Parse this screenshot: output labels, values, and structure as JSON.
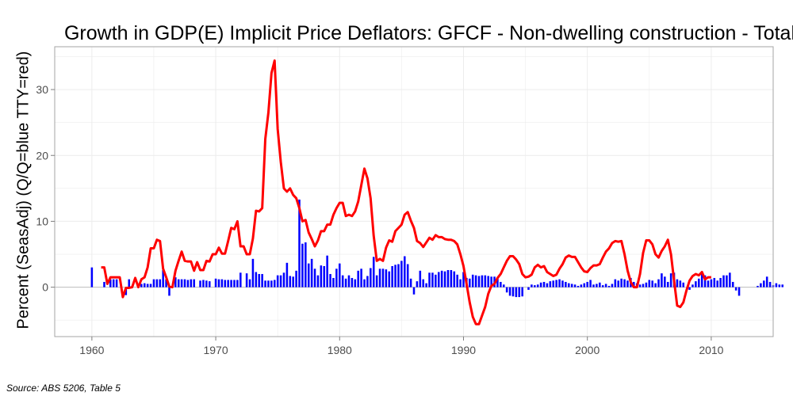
{
  "chart_data": {
    "type": "bar+line",
    "title": "Growth in GDP(E) Implicit Price Deflators: GFCF - Non-dwelling construction - Total",
    "ylabel": "Percent (SeasAdj) (Q/Q=blue TTY=red)",
    "xlabel": "",
    "xlim": [
      1957,
      2015
    ],
    "ylim": [
      -7.5,
      36.5
    ],
    "x_ticks": [
      1960,
      1970,
      1980,
      1990,
      2000,
      2010
    ],
    "y_ticks": [
      0,
      10,
      20,
      30
    ],
    "grid": true,
    "colors": {
      "qq": "#0000ff",
      "tty": "#ff0000",
      "zero_line": "#bdbdbd",
      "grid": "#ececec",
      "frame": "#a6a6a6"
    },
    "series": [
      {
        "name": "Q/Q",
        "style": "bar",
        "color": "#0000ff",
        "start": 1960.0,
        "step": 0.25,
        "values": [
          3.0,
          0,
          0,
          0,
          0.8,
          0,
          1.2,
          1.2,
          1.2,
          0,
          0,
          -1.2,
          1.2,
          0,
          0,
          0,
          0.5,
          0.6,
          0.5,
          0.5,
          1.2,
          1.2,
          1.2,
          2.6,
          1.2,
          -1.3,
          0,
          1.5,
          1.2,
          1.2,
          1.2,
          1.1,
          1.2,
          1.2,
          0,
          1.0,
          1.1,
          1.0,
          0.9,
          0,
          1.3,
          1.2,
          1.2,
          1.1,
          1.1,
          1.1,
          1.1,
          1.1,
          2.2,
          0,
          2.1,
          1.2,
          4.3,
          2.3,
          2.0,
          2.0,
          1.0,
          1.0,
          1.0,
          1.1,
          1.8,
          1.8,
          2.2,
          3.7,
          1.7,
          1.6,
          2.5,
          13.3,
          6.6,
          6.8,
          3.6,
          4.3,
          2.8,
          1.8,
          3.3,
          3.2,
          4.8,
          2.0,
          1.4,
          2.8,
          3.6,
          1.8,
          1.3,
          1.8,
          1.4,
          1.2,
          2.5,
          2.8,
          1.2,
          1.7,
          2.9,
          4.6,
          1.8,
          2.8,
          2.8,
          2.7,
          2.4,
          3.2,
          3.4,
          3.5,
          4.0,
          4.7,
          3.5,
          1.3,
          -1.1,
          0.9,
          2.5,
          1.2,
          0.6,
          2.2,
          2.2,
          1.9,
          2.3,
          2.5,
          2.4,
          2.6,
          2.6,
          2.4,
          1.9,
          1.2,
          2.3,
          1.4,
          1.3,
          1.9,
          1.8,
          1.7,
          1.8,
          1.8,
          1.7,
          1.6,
          1.6,
          1.3,
          0.8,
          0.4,
          -0.8,
          -1.3,
          -1.4,
          -1.5,
          -1.5,
          -1.4,
          0,
          -0.4,
          0.4,
          0.3,
          0.4,
          0.7,
          0.8,
          0.6,
          0.9,
          1.0,
          1.1,
          1.2,
          1.0,
          0.8,
          0.6,
          0.5,
          0.4,
          0.2,
          0.4,
          0.6,
          0.8,
          1.1,
          0.4,
          0.5,
          0.7,
          0.3,
          0.5,
          0.2,
          0.5,
          1.2,
          1.0,
          1.3,
          1.2,
          1.0,
          1.4,
          0.8,
          0.6,
          0.4,
          0.5,
          0.7,
          1.1,
          1.0,
          0.6,
          1.2,
          2.1,
          1.6,
          0.8,
          2.1,
          2.2,
          1.2,
          1.0,
          0.7,
          0,
          -0.4,
          0.4,
          0.9,
          1.3,
          2.4,
          1.8,
          1.0,
          1.2,
          1.4,
          1.0,
          1.4,
          1.8,
          1.8,
          2.2,
          0.8,
          -0.5,
          -1.3,
          0,
          0,
          0,
          0,
          0,
          0.2,
          0.6,
          1.0,
          1.6,
          0.8,
          0.3,
          0.6,
          0.4,
          0.4
        ]
      },
      {
        "name": "TTY",
        "style": "line",
        "color": "#ff0000",
        "points": [
          [
            1960.75,
            3.0
          ],
          [
            1961.0,
            3.0
          ],
          [
            1961.25,
            0.5
          ],
          [
            1961.5,
            1.5
          ],
          [
            1961.75,
            1.5
          ],
          [
            1962.0,
            1.5
          ],
          [
            1962.25,
            1.5
          ],
          [
            1962.5,
            -1.5
          ],
          [
            1962.75,
            -0.1
          ],
          [
            1963.0,
            -0.1
          ],
          [
            1963.25,
            0.0
          ],
          [
            1963.5,
            1.4
          ],
          [
            1963.75,
            0.0
          ],
          [
            1964.0,
            1.2
          ],
          [
            1964.25,
            1.5
          ],
          [
            1964.5,
            3.0
          ],
          [
            1964.75,
            5.9
          ],
          [
            1965.0,
            5.9
          ],
          [
            1965.25,
            7.2
          ],
          [
            1965.5,
            7.0
          ],
          [
            1965.75,
            2.8
          ],
          [
            1966.0,
            1.5
          ],
          [
            1966.25,
            0.1
          ],
          [
            1966.5,
            0.0
          ],
          [
            1966.75,
            2.5
          ],
          [
            1967.0,
            4.0
          ],
          [
            1967.25,
            5.4
          ],
          [
            1967.5,
            4.0
          ],
          [
            1967.75,
            3.9
          ],
          [
            1968.0,
            3.9
          ],
          [
            1968.25,
            2.5
          ],
          [
            1968.5,
            3.8
          ],
          [
            1968.75,
            2.6
          ],
          [
            1969.0,
            2.6
          ],
          [
            1969.25,
            4.0
          ],
          [
            1969.5,
            3.9
          ],
          [
            1969.75,
            5.0
          ],
          [
            1970.0,
            5.0
          ],
          [
            1970.25,
            6.0
          ],
          [
            1970.5,
            5.1
          ],
          [
            1970.75,
            5.1
          ],
          [
            1971.0,
            7.0
          ],
          [
            1971.25,
            9.0
          ],
          [
            1971.5,
            8.8
          ],
          [
            1971.75,
            10.0
          ],
          [
            1972.0,
            6.2
          ],
          [
            1972.25,
            6.2
          ],
          [
            1972.5,
            5.0
          ],
          [
            1972.75,
            5.0
          ],
          [
            1973.0,
            7.4
          ],
          [
            1973.25,
            11.6
          ],
          [
            1973.5,
            11.5
          ],
          [
            1973.75,
            12.0
          ],
          [
            1974.0,
            22.5
          ],
          [
            1974.25,
            26.5
          ],
          [
            1974.5,
            32.5
          ],
          [
            1974.75,
            34.4
          ],
          [
            1975.0,
            24.0
          ],
          [
            1975.25,
            19.0
          ],
          [
            1975.5,
            15.0
          ],
          [
            1975.75,
            14.5
          ],
          [
            1976.0,
            15.0
          ],
          [
            1976.25,
            14.0
          ],
          [
            1976.5,
            13.5
          ],
          [
            1976.75,
            12.0
          ],
          [
            1977.0,
            10.0
          ],
          [
            1977.25,
            10.2
          ],
          [
            1977.5,
            8.3
          ],
          [
            1977.75,
            7.3
          ],
          [
            1978.0,
            6.2
          ],
          [
            1978.25,
            7.1
          ],
          [
            1978.5,
            8.5
          ],
          [
            1978.75,
            8.5
          ],
          [
            1979.0,
            9.5
          ],
          [
            1979.25,
            9.5
          ],
          [
            1979.5,
            11.0
          ],
          [
            1979.75,
            12.0
          ],
          [
            1980.0,
            12.8
          ],
          [
            1980.25,
            12.8
          ],
          [
            1980.5,
            10.8
          ],
          [
            1980.75,
            11.0
          ],
          [
            1981.0,
            10.8
          ],
          [
            1981.25,
            11.5
          ],
          [
            1981.5,
            13.0
          ],
          [
            1981.75,
            15.5
          ],
          [
            1982.0,
            18.0
          ],
          [
            1982.25,
            16.5
          ],
          [
            1982.5,
            13.5
          ],
          [
            1982.75,
            7.8
          ],
          [
            1983.0,
            4.0
          ],
          [
            1983.25,
            4.3
          ],
          [
            1983.5,
            4.0
          ],
          [
            1983.75,
            6.0
          ],
          [
            1984.0,
            7.1
          ],
          [
            1984.25,
            6.9
          ],
          [
            1984.5,
            8.5
          ],
          [
            1984.75,
            9.0
          ],
          [
            1985.0,
            9.5
          ],
          [
            1985.25,
            11.0
          ],
          [
            1985.5,
            11.4
          ],
          [
            1985.75,
            10.1
          ],
          [
            1986.0,
            9.0
          ],
          [
            1986.25,
            7.0
          ],
          [
            1986.5,
            6.7
          ],
          [
            1986.75,
            6.1
          ],
          [
            1987.0,
            6.8
          ],
          [
            1987.25,
            7.5
          ],
          [
            1987.5,
            7.2
          ],
          [
            1987.75,
            7.9
          ],
          [
            1988.0,
            7.6
          ],
          [
            1988.25,
            7.6
          ],
          [
            1988.5,
            7.3
          ],
          [
            1988.75,
            7.2
          ],
          [
            1989.0,
            7.2
          ],
          [
            1989.25,
            7.0
          ],
          [
            1989.5,
            6.5
          ],
          [
            1989.75,
            5.0
          ],
          [
            1990.0,
            3.2
          ],
          [
            1990.25,
            0.5
          ],
          [
            1990.5,
            -2.3
          ],
          [
            1990.75,
            -4.5
          ],
          [
            1991.0,
            -5.6
          ],
          [
            1991.25,
            -5.6
          ],
          [
            1991.5,
            -4.3
          ],
          [
            1991.75,
            -3.0
          ],
          [
            1992.0,
            -1.0
          ],
          [
            1992.25,
            0.2
          ],
          [
            1992.5,
            0.5
          ],
          [
            1992.75,
            1.4
          ],
          [
            1993.0,
            2.0
          ],
          [
            1993.25,
            3.0
          ],
          [
            1993.5,
            4.0
          ],
          [
            1993.75,
            4.7
          ],
          [
            1994.0,
            4.7
          ],
          [
            1994.25,
            4.2
          ],
          [
            1994.5,
            3.5
          ],
          [
            1994.75,
            2.0
          ],
          [
            1995.0,
            1.5
          ],
          [
            1995.25,
            1.6
          ],
          [
            1995.5,
            1.9
          ],
          [
            1995.75,
            3.0
          ],
          [
            1996.0,
            3.4
          ],
          [
            1996.25,
            3.0
          ],
          [
            1996.5,
            3.2
          ],
          [
            1996.75,
            2.3
          ],
          [
            1997.0,
            2.0
          ],
          [
            1997.25,
            1.7
          ],
          [
            1997.5,
            1.9
          ],
          [
            1997.75,
            2.8
          ],
          [
            1998.0,
            3.5
          ],
          [
            1998.25,
            4.5
          ],
          [
            1998.5,
            4.8
          ],
          [
            1998.75,
            4.6
          ],
          [
            1999.0,
            4.6
          ],
          [
            1999.25,
            3.8
          ],
          [
            1999.5,
            3.0
          ],
          [
            1999.75,
            2.4
          ],
          [
            2000.0,
            2.3
          ],
          [
            2000.25,
            2.9
          ],
          [
            2000.5,
            3.3
          ],
          [
            2000.75,
            3.3
          ],
          [
            2001.0,
            3.5
          ],
          [
            2001.25,
            4.5
          ],
          [
            2001.5,
            5.4
          ],
          [
            2001.75,
            5.9
          ],
          [
            2002.0,
            6.7
          ],
          [
            2002.25,
            7.0
          ],
          [
            2002.5,
            6.9
          ],
          [
            2002.75,
            7.0
          ],
          [
            2003.0,
            5.0
          ],
          [
            2003.25,
            2.5
          ],
          [
            2003.5,
            0.8
          ],
          [
            2003.75,
            0.0
          ],
          [
            2004.0,
            0.0
          ],
          [
            2004.25,
            2.0
          ],
          [
            2004.5,
            5.2
          ],
          [
            2004.75,
            7.1
          ],
          [
            2005.0,
            7.1
          ],
          [
            2005.25,
            6.5
          ],
          [
            2005.5,
            5.0
          ],
          [
            2005.75,
            4.5
          ],
          [
            2006.0,
            5.5
          ],
          [
            2006.25,
            6.2
          ],
          [
            2006.5,
            7.2
          ],
          [
            2006.75,
            5.0
          ],
          [
            2007.0,
            1.0
          ],
          [
            2007.25,
            -2.8
          ],
          [
            2007.5,
            -3.0
          ],
          [
            2007.75,
            -2.3
          ],
          [
            2008.0,
            -0.5
          ],
          [
            2008.25,
            1.0
          ],
          [
            2008.5,
            1.7
          ],
          [
            2008.75,
            2.0
          ],
          [
            2009.0,
            1.8
          ],
          [
            2009.25,
            2.3
          ],
          [
            2009.5,
            1.2
          ],
          [
            2009.75,
            1.5
          ],
          [
            2010.0,
            1.5
          ]
        ]
      }
    ],
    "source": "Source: ABS 5206, Table 5"
  }
}
